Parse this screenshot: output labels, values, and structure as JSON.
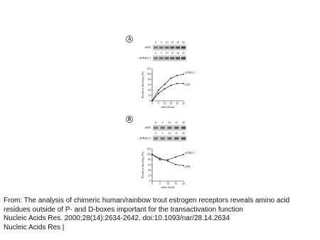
{
  "figure": {
    "panels": [
      {
        "label": "A",
        "gels": [
          {
            "name": "rtER",
            "lanes": [
              0,
              5,
              10,
              15,
              20,
              25
            ]
          },
          {
            "name": "rtER(hC)",
            "lanes": [
              0,
              5,
              10,
              15,
              20,
              25
            ]
          }
        ]
      },
      {
        "label": "B",
        "gels": [
          {
            "name": "rtER",
            "lanes": [
              0,
              5,
              10,
              15,
              20
            ]
          },
          {
            "name": "rtER(hC)",
            "lanes": [
              0,
              5,
              10,
              15,
              20
            ]
          }
        ]
      }
    ]
  },
  "chart_data": [
    {
      "type": "line",
      "xlabel": "time (min)",
      "ylabel": "Relative binding (%)",
      "x": [
        0,
        5,
        10,
        15,
        20,
        25
      ],
      "series": [
        {
          "name": "rtER(hC)",
          "color": "#000000",
          "values": [
            0,
            40,
            62,
            85,
            95,
            100
          ]
        },
        {
          "name": "rtER",
          "color": "#000000",
          "values": [
            0,
            28,
            45,
            58,
            65,
            65
          ]
        }
      ],
      "xlim": [
        0,
        25
      ],
      "ylim": [
        0,
        120
      ],
      "xticks": [
        0,
        5,
        10,
        15,
        20,
        25
      ],
      "yticks": [
        0,
        20,
        40,
        60,
        80,
        100,
        120
      ]
    },
    {
      "type": "line",
      "xlabel": "time (min)",
      "ylabel": "Relative binding (%)",
      "x": [
        0,
        5,
        10,
        15,
        20
      ],
      "series": [
        {
          "name": "rtER(hC)",
          "color": "#000000",
          "values": [
            100,
            80,
            80,
            90,
            100
          ]
        },
        {
          "name": "rtER",
          "color": "#000000",
          "values": [
            100,
            85,
            75,
            62,
            58
          ]
        }
      ],
      "xlim": [
        0,
        20
      ],
      "ylim": [
        0,
        120
      ],
      "xticks": [
        0,
        5,
        10,
        15,
        20
      ],
      "yticks": [
        0,
        20,
        40,
        60,
        80,
        100,
        120
      ]
    }
  ],
  "caption": {
    "from": "From: The analysis of chimeric human/rainbow trout estrogen receptors reveals amino acid residues outside of P- and D-boxes important for the transactivation function",
    "citation": "Nucleic Acids Res. 2000;28(14):2634-2642. doi:10.1093/nar/28.14.2634",
    "journal": "Nucleic Acids Res |"
  }
}
